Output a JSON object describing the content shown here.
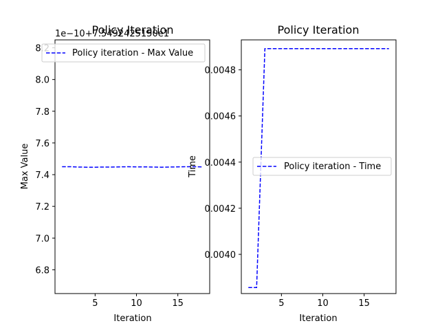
{
  "chart_data": [
    {
      "type": "line",
      "title": "Policy Iteration",
      "xlabel": "Iteration",
      "ylabel": "Max Value",
      "y_offset_label": "1e−10+7.5492425150e1",
      "xlim": [
        0.15,
        18.85
      ],
      "ylim": [
        6.65,
        8.25
      ],
      "xticks": [
        5,
        10,
        15
      ],
      "yticks": [
        6.8,
        7.0,
        7.2,
        7.4,
        7.6,
        7.8,
        8.0,
        8.2
      ],
      "ytick_labels": [
        "6.8",
        "7.0",
        "7.2",
        "7.4",
        "7.6",
        "7.8",
        "8.0",
        "8.2"
      ],
      "legend_position": "upper-left",
      "series": [
        {
          "name": "Policy iteration - Max Value",
          "color": "#0000ff",
          "style": "dashed",
          "x": [
            1,
            2,
            3,
            4,
            5,
            6,
            7,
            8,
            9,
            10,
            11,
            12,
            13,
            14,
            15,
            16,
            17,
            18
          ],
          "y": [
            7.45,
            7.45,
            7.448,
            7.447,
            7.447,
            7.448,
            7.448,
            7.449,
            7.45,
            7.449,
            7.449,
            7.448,
            7.447,
            7.448,
            7.449,
            7.45,
            7.45,
            7.449
          ]
        }
      ]
    },
    {
      "type": "line",
      "title": "Policy Iteration",
      "xlabel": "Iteration",
      "ylabel": "Time",
      "xlim": [
        0.15,
        18.85
      ],
      "ylim": [
        0.00383,
        0.00493
      ],
      "xticks": [
        5,
        10,
        15
      ],
      "yticks": [
        0.004,
        0.0042,
        0.0044,
        0.0046,
        0.0048
      ],
      "ytick_labels": [
        "0.0040",
        "0.0042",
        "0.0044",
        "0.0046",
        "0.0048"
      ],
      "legend_position": "center-right",
      "series": [
        {
          "name": "Policy iteration - Time",
          "color": "#0000ff",
          "style": "dashed",
          "x": [
            1,
            2,
            3,
            4,
            5,
            6,
            7,
            8,
            9,
            10,
            11,
            12,
            13,
            14,
            15,
            16,
            17,
            18
          ],
          "y": [
            0.003856,
            0.003856,
            0.004892,
            0.004892,
            0.004892,
            0.004892,
            0.004892,
            0.004892,
            0.004892,
            0.004892,
            0.004892,
            0.004892,
            0.004892,
            0.004892,
            0.004892,
            0.004892,
            0.004892,
            0.004892
          ]
        }
      ]
    }
  ]
}
